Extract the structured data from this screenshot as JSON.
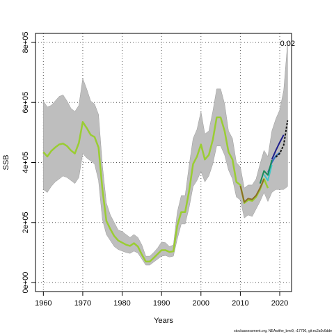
{
  "chart_data": {
    "type": "line",
    "title": "",
    "xlabel": "Years",
    "ylabel": "SSB",
    "xlim": [
      1958,
      2023
    ],
    "ylim": [
      -30000,
      830000
    ],
    "x_ticks": [
      1960,
      1970,
      1980,
      1990,
      2000,
      2010,
      2020
    ],
    "y_ticks": [
      0,
      200000,
      400000,
      600000,
      800000
    ],
    "y_tick_labels": [
      "0e+00",
      "2e+05",
      "4e+05",
      "6e+05",
      "8e+05"
    ],
    "grid": true,
    "annotation": "0.02",
    "footer": "stockassessment.org, NEAwithe_bmr9, r17790, git:ec2a0c6dde",
    "ci_band": {
      "x": [
        1960,
        1961,
        1962,
        1963,
        1964,
        1965,
        1966,
        1967,
        1968,
        1969,
        1970,
        1971,
        1972,
        1973,
        1974,
        1975,
        1976,
        1977,
        1978,
        1979,
        1980,
        1981,
        1982,
        1983,
        1984,
        1985,
        1986,
        1987,
        1988,
        1989,
        1990,
        1991,
        1992,
        1993,
        1994,
        1995,
        1996,
        1997,
        1998,
        1999,
        2000,
        2001,
        2002,
        2003,
        2004,
        2005,
        2006,
        2007,
        2008,
        2009,
        2010,
        2011,
        2012,
        2013,
        2014,
        2015,
        2016,
        2017,
        2018,
        2019,
        2020,
        2021,
        2022
      ],
      "lower": [
        310000,
        300000,
        320000,
        335000,
        345000,
        355000,
        350000,
        340000,
        330000,
        350000,
        430000,
        415000,
        405000,
        395000,
        340000,
        210000,
        160000,
        140000,
        120000,
        110000,
        105000,
        100000,
        97000,
        105000,
        98000,
        78000,
        58000,
        58000,
        68000,
        78000,
        88000,
        90000,
        85000,
        88000,
        145000,
        195000,
        195000,
        250000,
        320000,
        340000,
        370000,
        335000,
        355000,
        395000,
        455000,
        455000,
        425000,
        375000,
        345000,
        285000,
        275000,
        215000,
        225000,
        220000,
        245000,
        270000,
        300000,
        270000,
        300000,
        310000,
        310000,
        310000,
        320000
      ],
      "upper": [
        605000,
        585000,
        590000,
        605000,
        620000,
        625000,
        605000,
        580000,
        570000,
        590000,
        680000,
        645000,
        605000,
        595000,
        560000,
        390000,
        265000,
        225000,
        200000,
        175000,
        170000,
        160000,
        150000,
        160000,
        150000,
        125000,
        88000,
        88000,
        100000,
        115000,
        135000,
        133000,
        120000,
        125000,
        235000,
        290000,
        290000,
        390000,
        480000,
        510000,
        570000,
        495000,
        505000,
        570000,
        645000,
        645000,
        595000,
        505000,
        480000,
        400000,
        385000,
        315000,
        325000,
        325000,
        345000,
        395000,
        440000,
        420000,
        505000,
        545000,
        575000,
        640000,
        800000
      ]
    },
    "series": [
      {
        "color": "#9acd32",
        "x": [
          1960,
          1961,
          1962,
          1963,
          1964,
          1965,
          1966,
          1967,
          1968,
          1969,
          1970,
          1971,
          1972,
          1973,
          1974,
          1975,
          1976,
          1977,
          1978,
          1979,
          1980,
          1981,
          1982,
          1983,
          1984,
          1985,
          1986,
          1987,
          1988,
          1989,
          1990,
          1991,
          1992,
          1993,
          1994,
          1995,
          1996,
          1997,
          1998,
          1999,
          2000,
          2001,
          2002,
          2003,
          2004,
          2005,
          2006,
          2007,
          2008,
          2009,
          2010,
          2011,
          2012,
          2013,
          2014,
          2015,
          2016,
          2017
        ],
        "y": [
          435000,
          420000,
          438000,
          450000,
          460000,
          463000,
          455000,
          440000,
          430000,
          465000,
          535000,
          515000,
          492000,
          485000,
          450000,
          310000,
          205000,
          178000,
          155000,
          140000,
          133000,
          126000,
          122000,
          131000,
          120000,
          93000,
          70000,
          70000,
          82000,
          95000,
          108000,
          108000,
          102000,
          104000,
          190000,
          235000,
          235000,
          305000,
          395000,
          420000,
          460000,
          410000,
          425000,
          475000,
          550000,
          550000,
          505000,
          435000,
          410000,
          335000,
          325000,
          265000,
          275000,
          272000,
          285000,
          310000,
          345000,
          315000
        ]
      },
      {
        "color": "#1e1e8c",
        "x": [
          2018,
          2019,
          2020,
          2021
        ],
        "y": [
          410000,
          440000,
          467000,
          492000
        ]
      },
      {
        "color": "#2f6fbf",
        "x": [
          2017,
          2018,
          2019,
          2020
        ],
        "y": [
          367000,
          400000,
          422000,
          433000
        ]
      },
      {
        "color": "#3fc8c8",
        "x": [
          2016,
          2017,
          2018
        ],
        "y": [
          360000,
          340000,
          392000
        ]
      },
      {
        "color": "#1c8a5a",
        "x": [
          2015,
          2016,
          2017,
          2018
        ],
        "y": [
          330000,
          372000,
          358000,
          408000
        ]
      },
      {
        "color": "#8c6c28",
        "x": [
          2010,
          2011,
          2012,
          2013,
          2014,
          2015,
          2016
        ],
        "y": [
          322000,
          268000,
          280000,
          277000,
          290000,
          315000,
          345000
        ]
      },
      {
        "color": "#666666",
        "x": [
          2019,
          2020,
          2021,
          2022
        ],
        "y": [
          418000,
          430000,
          458000,
          540000
        ],
        "dashed": true
      }
    ]
  }
}
